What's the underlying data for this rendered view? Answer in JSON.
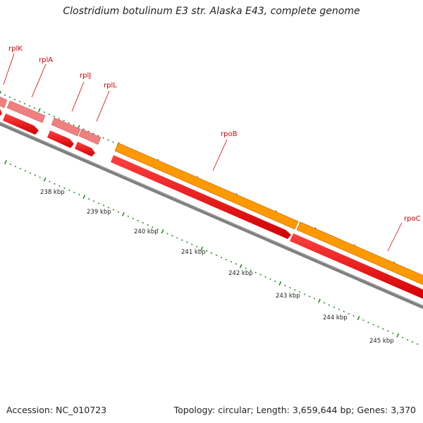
{
  "title": "Clostridium botulinum E3 str. Alaska E43, complete genome",
  "footer": {
    "accession": "Accession: NC_010723",
    "summary": "Topology: circular; Length: 3,659,644 bp; Genes: 3,370"
  },
  "genes": [
    {
      "name": "rplK"
    },
    {
      "name": "rplA"
    },
    {
      "name": "rplJ"
    },
    {
      "name": "rplL"
    },
    {
      "name": "rpoB"
    },
    {
      "name": "rpoC"
    }
  ],
  "ticks": [
    "238 kbp",
    "239 kbp",
    "240 kbp",
    "241 kbp",
    "242 kbp",
    "243 kbp",
    "244 kbp",
    "245 kbp"
  ],
  "colors": {
    "backbone": "#808080",
    "cds": "#ff0000",
    "rrna_like": "#f08080",
    "highlight": "#ff9900",
    "tick": "#2e8b2e",
    "label": "#d00000"
  }
}
